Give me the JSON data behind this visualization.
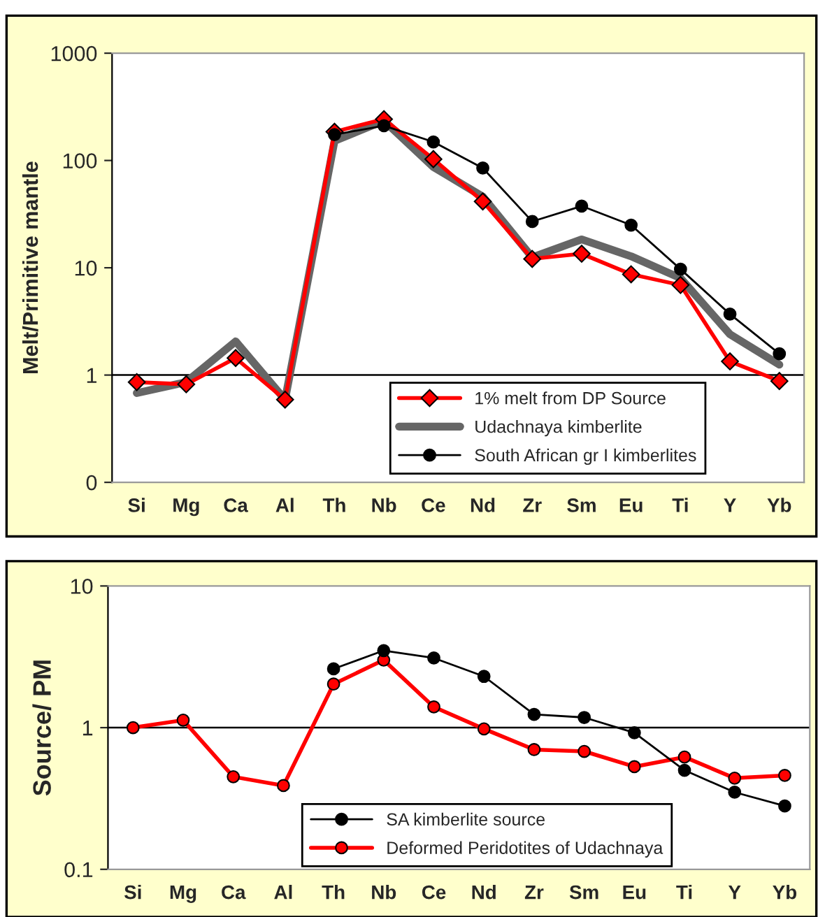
{
  "chart_data": [
    {
      "type": "line",
      "ylabel": "Melt/Primitive mantle",
      "log": true,
      "categories": [
        "Si",
        "Mg",
        "Ca",
        "Al",
        "Th",
        "Nb",
        "Ce",
        "Nd",
        "Zr",
        "Sm",
        "Eu",
        "Ti",
        "Y",
        "Yb"
      ],
      "ylim": [
        0.1,
        1000
      ],
      "yticks": [
        {
          "value": 0.1,
          "label": "0"
        },
        1,
        10,
        100,
        1000
      ],
      "ref_lines": [
        {
          "axis": "y",
          "value": 1,
          "color": "#000000"
        }
      ],
      "legend": "bottom right",
      "grid": false,
      "series": [
        {
          "name": "1% melt from DP Source",
          "color": "#ff0000",
          "marker": "diamond",
          "values": [
            0.86,
            0.82,
            1.44,
            0.59,
            185,
            243,
            103,
            41.5,
            12.1,
            13.5,
            8.7,
            6.9,
            1.34,
            0.88
          ]
        },
        {
          "name": "Udachnaya kimberlite",
          "color": "#666666",
          "marker": "none",
          "values": [
            0.68,
            0.86,
            2.06,
            0.59,
            152,
            235,
            87,
            46,
            12.5,
            18.4,
            12.8,
            8.0,
            2.4,
            1.25
          ]
        },
        {
          "name": "South African gr I kimberlites",
          "color": "#000000",
          "marker": "circle",
          "values": [
            null,
            null,
            null,
            null,
            174,
            211,
            149,
            85,
            27,
            37.6,
            25,
            9.7,
            3.7,
            1.58
          ]
        }
      ]
    },
    {
      "type": "line",
      "ylabel": "Source/ PM",
      "log": true,
      "categories": [
        "Si",
        "Mg",
        "Ca",
        "Al",
        "Th",
        "Nb",
        "Ce",
        "Nd",
        "Zr",
        "Sm",
        "Eu",
        "Ti",
        "Y",
        "Yb"
      ],
      "ylim": [
        0.1,
        10
      ],
      "yticks": [
        0.1,
        1,
        10
      ],
      "ref_lines": [
        {
          "axis": "y",
          "value": 1,
          "color": "#000000"
        }
      ],
      "legend": "bottom",
      "grid": false,
      "series": [
        {
          "name": "SA kimberlite source",
          "color": "#000000",
          "marker": "circle",
          "values": [
            null,
            null,
            null,
            null,
            2.6,
            3.5,
            3.1,
            2.3,
            1.24,
            1.18,
            0.92,
            0.5,
            0.35,
            0.28
          ]
        },
        {
          "name": "Deformed Peridotites of Udachnaya",
          "color": "#ff0000",
          "marker": "circle",
          "values": [
            1.0,
            1.13,
            0.45,
            0.39,
            2.03,
            3.0,
            1.4,
            0.98,
            0.7,
            0.68,
            0.53,
            0.62,
            0.44,
            0.46
          ]
        }
      ]
    }
  ]
}
